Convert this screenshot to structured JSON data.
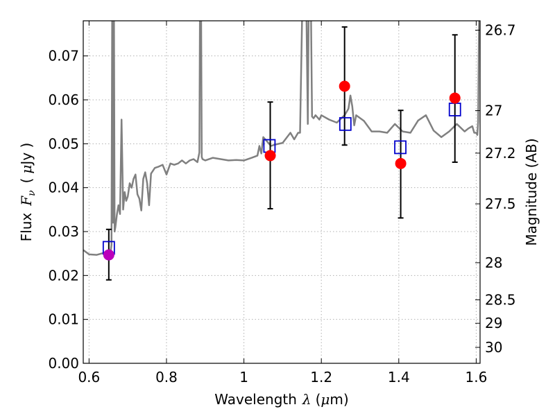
{
  "chart_data": {
    "type": "scatter",
    "xlabel": "Wavelength",
    "xlabel_symbol": "λ",
    "xlabel_unit_open": "(",
    "xlabel_unit_mu": "μ",
    "xlabel_unit_rest": "m)",
    "ylabel": "Flux",
    "ylabel_symbol": "F",
    "ylabel_subscript": "ν",
    "ylabel_unit_open": "(",
    "ylabel_unit_mu": "μ",
    "ylabel_unit_rest": "Jy )",
    "y2label": "Magnitude (AB)",
    "xlim": [
      0.585,
      1.61
    ],
    "ylim": [
      0.0,
      0.078
    ],
    "grid": true,
    "x_ticks": [
      0.6,
      0.8,
      1.0,
      1.2,
      1.4,
      1.6
    ],
    "x_tick_labels": [
      "0.6",
      "0.8",
      "1",
      "1.2",
      "1.4",
      "1.6"
    ],
    "y_ticks": [
      0.0,
      0.01,
      0.02,
      0.03,
      0.04,
      0.05,
      0.06,
      0.07
    ],
    "y_tick_labels": [
      "0.00",
      "0.01",
      "0.02",
      "0.03",
      "0.04",
      "0.05",
      "0.06",
      "0.07"
    ],
    "y2_ticks": [
      26.7,
      27,
      27.2,
      27.5,
      28,
      28.5,
      29,
      30
    ],
    "y2_tick_labels": [
      "26.7",
      "27",
      "27.2",
      "27.5",
      "28",
      "28.5",
      "29",
      "30"
    ],
    "colors": {
      "model": "#808080",
      "template": "#0000cc",
      "observed": "#ff0000",
      "first_observed": "#bb00bb",
      "errorbar": "#000000",
      "grid": "#b0b0b0"
    },
    "model_spectrum": {
      "x": [
        0.585,
        0.6,
        0.62,
        0.64,
        0.65,
        0.655,
        0.658,
        0.66,
        0.662,
        0.664,
        0.666,
        0.668,
        0.672,
        0.676,
        0.68,
        0.684,
        0.688,
        0.692,
        0.696,
        0.7,
        0.705,
        0.71,
        0.715,
        0.72,
        0.725,
        0.73,
        0.735,
        0.74,
        0.745,
        0.75,
        0.755,
        0.76,
        0.77,
        0.78,
        0.79,
        0.8,
        0.81,
        0.82,
        0.83,
        0.84,
        0.85,
        0.86,
        0.87,
        0.88,
        0.885,
        0.887,
        0.889,
        0.891,
        0.893,
        0.9,
        0.92,
        0.94,
        0.96,
        0.98,
        1.0,
        1.02,
        1.035,
        1.04,
        1.045,
        1.05,
        1.06,
        1.07,
        1.08,
        1.1,
        1.12,
        1.13,
        1.14,
        1.145,
        1.15,
        1.155,
        1.16,
        1.165,
        1.168,
        1.172,
        1.176,
        1.18,
        1.185,
        1.19,
        1.195,
        1.2,
        1.22,
        1.24,
        1.26,
        1.27,
        1.275,
        1.28,
        1.285,
        1.29,
        1.31,
        1.33,
        1.35,
        1.37,
        1.39,
        1.41,
        1.43,
        1.45,
        1.47,
        1.49,
        1.51,
        1.53,
        1.55,
        1.57,
        1.58,
        1.59,
        1.595,
        1.6,
        1.603,
        1.605,
        1.607,
        1.61
      ],
      "y": [
        0.0258,
        0.0248,
        0.0247,
        0.0252,
        0.0248,
        0.025,
        0.027,
        0.09,
        0.032,
        0.09,
        0.03,
        0.031,
        0.034,
        0.036,
        0.034,
        0.0555,
        0.035,
        0.039,
        0.037,
        0.038,
        0.041,
        0.04,
        0.042,
        0.043,
        0.0385,
        0.0375,
        0.0348,
        0.042,
        0.0435,
        0.041,
        0.036,
        0.0432,
        0.0445,
        0.0448,
        0.0452,
        0.043,
        0.0455,
        0.0452,
        0.0455,
        0.0462,
        0.0455,
        0.0462,
        0.0465,
        0.0458,
        0.048,
        0.09,
        0.09,
        0.047,
        0.0465,
        0.0462,
        0.0468,
        0.0465,
        0.0462,
        0.0463,
        0.0462,
        0.0468,
        0.0473,
        0.0495,
        0.0478,
        0.0515,
        0.0505,
        0.0495,
        0.0498,
        0.0502,
        0.0525,
        0.051,
        0.0525,
        0.0525,
        0.0775,
        0.09,
        0.09,
        0.0545,
        0.09,
        0.09,
        0.0562,
        0.0558,
        0.0565,
        0.056,
        0.0555,
        0.0565,
        0.0555,
        0.0548,
        0.0565,
        0.058,
        0.061,
        0.0585,
        0.0542,
        0.0565,
        0.0552,
        0.0528,
        0.0528,
        0.0525,
        0.0545,
        0.0528,
        0.0525,
        0.0553,
        0.0565,
        0.053,
        0.0515,
        0.0528,
        0.0545,
        0.0528,
        0.0535,
        0.054,
        0.0525,
        0.0525,
        0.052,
        0.055,
        0.075,
        0.09
      ]
    },
    "template_points": {
      "x": [
        0.651,
        1.066,
        1.262,
        1.404,
        1.545
      ],
      "y": [
        0.0263,
        0.0495,
        0.0545,
        0.0492,
        0.0578
      ]
    },
    "observed_points": {
      "x": [
        0.651,
        1.068,
        1.26,
        1.405,
        1.545
      ],
      "y": [
        0.0247,
        0.0473,
        0.0631,
        0.0455,
        0.0604
      ],
      "yerr_low": [
        0.019,
        0.0352,
        0.0497,
        0.0331,
        0.0458
      ],
      "yerr_high": [
        0.0305,
        0.0595,
        0.0766,
        0.0576,
        0.0748
      ]
    }
  }
}
